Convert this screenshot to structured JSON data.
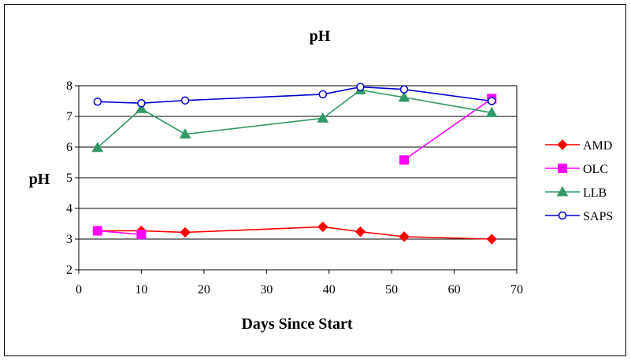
{
  "chart_data": {
    "type": "line",
    "title": "pH",
    "xlabel": "Days Since Start",
    "ylabel": "pH",
    "xlim": [
      0,
      70
    ],
    "ylim": [
      2,
      8
    ],
    "xticks": [
      0,
      10,
      20,
      30,
      40,
      50,
      60,
      70
    ],
    "yticks": [
      2,
      3,
      4,
      5,
      6,
      7,
      8
    ],
    "grid": "horizontal",
    "legend_position": "right",
    "series": [
      {
        "name": "AMD",
        "color": "#ff0000",
        "marker": "diamond",
        "x": [
          3,
          10,
          17,
          39,
          45,
          52,
          66
        ],
        "y": [
          3.27,
          3.27,
          3.22,
          3.4,
          3.24,
          3.08,
          3.0
        ]
      },
      {
        "name": "OLC",
        "color": "#ff00ff",
        "marker": "square",
        "segments": [
          {
            "x": [
              3,
              10
            ],
            "y": [
              3.27,
              3.15
            ]
          },
          {
            "x": [
              52,
              66
            ],
            "y": [
              5.58,
              7.58
            ]
          }
        ]
      },
      {
        "name": "LLB",
        "color": "#339966",
        "marker": "triangle",
        "x": [
          3,
          10,
          17,
          39,
          45,
          52,
          66
        ],
        "y": [
          5.98,
          7.25,
          6.42,
          6.94,
          7.86,
          7.62,
          7.12
        ]
      },
      {
        "name": "SAPS",
        "color": "#0000cc",
        "marker": "circle",
        "x": [
          3,
          10,
          17,
          39,
          45,
          52,
          66
        ],
        "y": [
          7.48,
          7.43,
          7.52,
          7.72,
          7.96,
          7.88,
          7.5
        ]
      }
    ]
  }
}
